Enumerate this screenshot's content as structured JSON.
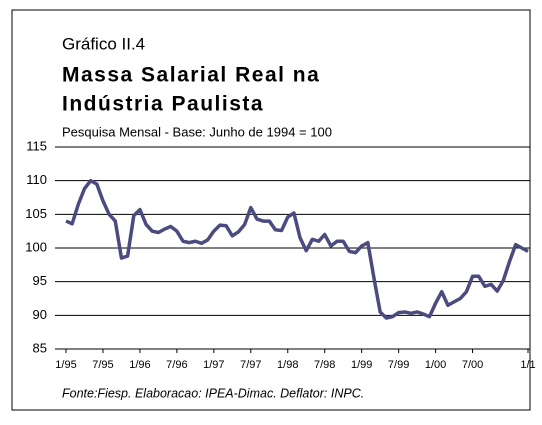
{
  "chart_data": {
    "type": "line",
    "chart_label": "Gráfico II.4",
    "title": [
      "Massa Salarial Real na",
      "Indústria Paulista"
    ],
    "subtitle": "Pesquisa Mensal - Base: Junho de 1994 = 100",
    "source": "Fonte:Fiesp. Elaboracao: IPEA-Dimac. Deflator: INPC.",
    "x": [
      0,
      1,
      2,
      3,
      4,
      5,
      6,
      7,
      8,
      9,
      10,
      11,
      12,
      13,
      14,
      15,
      16,
      17,
      18,
      19,
      20,
      21,
      22,
      23,
      24,
      25,
      26,
      27,
      28,
      29,
      30,
      31,
      32,
      33,
      34,
      35,
      36,
      37,
      38,
      39,
      40,
      41,
      42,
      43,
      44,
      45,
      46,
      47,
      48,
      49,
      50,
      51,
      52,
      53,
      54,
      55,
      56,
      57,
      58,
      59,
      60,
      61,
      62,
      63,
      64,
      65,
      66,
      67,
      68,
      69,
      70,
      71,
      72,
      73,
      74,
      75
    ],
    "series": [
      {
        "color": "#4b4b7f",
        "values": [
          104,
          103.6,
          106.5,
          108.8,
          110,
          109.5,
          107,
          105,
          104,
          98.5,
          98.8,
          104.8,
          105.7,
          103.5,
          102.5,
          102.3,
          102.8,
          103.2,
          102.5,
          101,
          100.8,
          101,
          100.7,
          101.2,
          102.5,
          103.4,
          103.3,
          101.8,
          102.4,
          103.5,
          106,
          104.3,
          104,
          104,
          102.7,
          102.6,
          104.6,
          105.2,
          101.5,
          99.6,
          101.3,
          101,
          102,
          100.3,
          101,
          101,
          99.5,
          99.3,
          100.3,
          100.8,
          95.5,
          90.5,
          89.6,
          89.8,
          90.4,
          90.5,
          90.3,
          90.5,
          90.2,
          89.8,
          91.8,
          93.5,
          91.5,
          92,
          92.5,
          93.5,
          95.8,
          95.8,
          94.3,
          94.6,
          93.6,
          95.2,
          98,
          100.5,
          100,
          99.5
        ]
      }
    ],
    "xlim": [
      0,
      75
    ],
    "xticks": [
      {
        "value": 0,
        "label": "1/95"
      },
      {
        "value": 6,
        "label": "7/95"
      },
      {
        "value": 12,
        "label": "1/96"
      },
      {
        "value": 18,
        "label": "7/96"
      },
      {
        "value": 24,
        "label": "1/97"
      },
      {
        "value": 30,
        "label": "7/97"
      },
      {
        "value": 36,
        "label": "1/98"
      },
      {
        "value": 42,
        "label": "7/98"
      },
      {
        "value": 48,
        "label": "1/99"
      },
      {
        "value": 54,
        "label": "7/99"
      },
      {
        "value": 60,
        "label": "1/00"
      },
      {
        "value": 66,
        "label": "7/00"
      },
      {
        "value": 75,
        "label": "1/1"
      }
    ],
    "ylim": [
      85,
      115
    ],
    "yticks": [
      85,
      90,
      95,
      100,
      105,
      110,
      115
    ],
    "grid": true
  }
}
